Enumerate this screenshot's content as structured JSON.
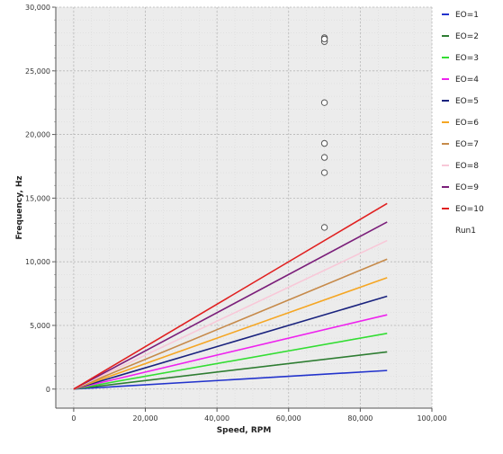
{
  "chart_data": {
    "type": "line",
    "title": "",
    "xlabel": "Speed, RPM",
    "ylabel": "Frequency, Hz",
    "xlim": [
      -5000,
      100000
    ],
    "ylim": [
      -1500,
      30000
    ],
    "x_ticks": [
      "0",
      "20,000",
      "40,000",
      "60,000",
      "80,000",
      "100,000"
    ],
    "y_ticks": [
      "0",
      "5,000",
      "10,000",
      "15,000",
      "20,000",
      "25,000",
      "30,000"
    ],
    "grid": true,
    "legend_position": "right",
    "series": [
      {
        "name": "EO=1",
        "color": "#2233cc",
        "x": [
          0,
          87500
        ],
        "y": [
          0,
          1458
        ]
      },
      {
        "name": "EO=2",
        "color": "#2e7d32",
        "x": [
          0,
          87500
        ],
        "y": [
          0,
          2917
        ]
      },
      {
        "name": "EO=3",
        "color": "#33dd33",
        "x": [
          0,
          87500
        ],
        "y": [
          0,
          4375
        ]
      },
      {
        "name": "EO=4",
        "color": "#ee22ee",
        "x": [
          0,
          87500
        ],
        "y": [
          0,
          5833
        ]
      },
      {
        "name": "EO=5",
        "color": "#1a237e",
        "x": [
          0,
          87500
        ],
        "y": [
          0,
          7292
        ]
      },
      {
        "name": "EO=6",
        "color": "#f5a623",
        "x": [
          0,
          87500
        ],
        "y": [
          0,
          8750
        ]
      },
      {
        "name": "EO=7",
        "color": "#c68a4a",
        "x": [
          0,
          87500
        ],
        "y": [
          0,
          10208
        ]
      },
      {
        "name": "EO=8",
        "color": "#f8c8d8",
        "x": [
          0,
          87500
        ],
        "y": [
          0,
          11667
        ]
      },
      {
        "name": "EO=9",
        "color": "#7b1f7a",
        "x": [
          0,
          87500
        ],
        "y": [
          0,
          13125
        ]
      },
      {
        "name": "EO=10",
        "color": "#e02020",
        "x": [
          0,
          87500
        ],
        "y": [
          0,
          14583
        ]
      },
      {
        "name": "Run1",
        "color": "#555555",
        "marker": "circle",
        "line": false,
        "x": [
          70000,
          70000,
          70000,
          70000,
          70000,
          70000,
          70000,
          70000
        ],
        "y": [
          27600,
          27300,
          22500,
          19300,
          18200,
          17000,
          12700,
          27500
        ]
      }
    ]
  }
}
